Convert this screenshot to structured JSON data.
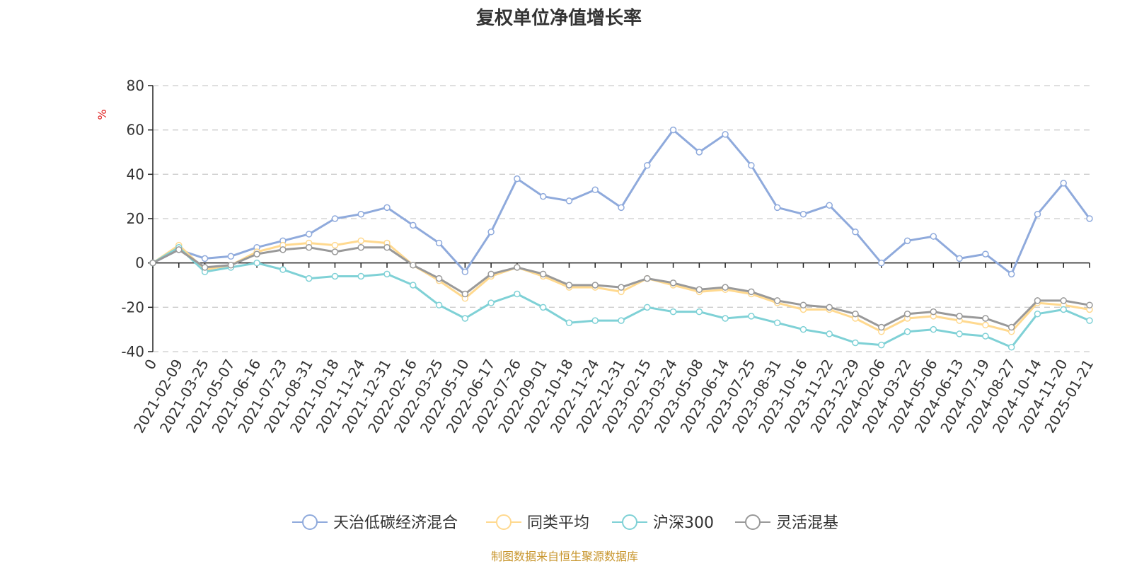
{
  "chart_data": {
    "type": "line",
    "title": "复权单位净值增长率",
    "ylabel": "%",
    "xlabel": "",
    "ylim": [
      -40,
      80
    ],
    "yticks": [
      80,
      60,
      40,
      20,
      0,
      -20,
      -40
    ],
    "grid": true,
    "legend_position": "bottom",
    "categories": [
      "0",
      "2021-02-09",
      "2021-03-25",
      "2021-05-07",
      "2021-06-16",
      "2021-07-23",
      "2021-08-31",
      "2021-10-18",
      "2021-11-24",
      "2021-12-31",
      "2022-02-16",
      "2022-03-25",
      "2022-05-10",
      "2022-06-17",
      "2022-07-26",
      "2022-09-01",
      "2022-10-18",
      "2022-11-24",
      "2022-12-31",
      "2023-02-15",
      "2023-03-24",
      "2023-05-08",
      "2023-06-14",
      "2023-07-25",
      "2023-08-31",
      "2023-10-16",
      "2023-11-22",
      "2023-12-29",
      "2024-02-06",
      "2024-03-22",
      "2024-05-06",
      "2024-06-13",
      "2024-07-19",
      "2024-08-27",
      "2024-10-14",
      "2024-11-20",
      "2025-01-21"
    ],
    "series": [
      {
        "name": "天治低碳经济混合",
        "color": "#8faadc",
        "values": [
          0,
          6,
          2,
          3,
          7,
          10,
          13,
          20,
          22,
          25,
          17,
          9,
          -4,
          14,
          38,
          30,
          28,
          33,
          25,
          44,
          60,
          50,
          58,
          44,
          25,
          22,
          26,
          14,
          0,
          10,
          12,
          2,
          4,
          -5,
          22,
          36,
          20
        ]
      },
      {
        "name": "同类平均",
        "color": "#ffd98f",
        "values": [
          0,
          8,
          -3,
          -1,
          5,
          8,
          9,
          8,
          10,
          9,
          -1,
          -8,
          -16,
          -6,
          -2,
          -6,
          -11,
          -11,
          -13,
          -7,
          -10,
          -13,
          -12,
          -14,
          -18,
          -21,
          -21,
          -25,
          -31,
          -25,
          -24,
          -26,
          -28,
          -31,
          -18,
          -19,
          -21
        ]
      },
      {
        "name": "沪深300",
        "color": "#7fd1d6",
        "values": [
          0,
          7,
          -4,
          -2,
          0,
          -3,
          -7,
          -6,
          -6,
          -5,
          -10,
          -19,
          -25,
          -18,
          -14,
          -20,
          -27,
          -26,
          -26,
          -20,
          -22,
          -22,
          -25,
          -24,
          -27,
          -30,
          -32,
          -36,
          -37,
          -31,
          -30,
          -32,
          -33,
          -38,
          -23,
          -21,
          -26
        ]
      },
      {
        "name": "灵活混基",
        "color": "#999999",
        "values": [
          0,
          6,
          -2,
          -1,
          4,
          6,
          7,
          5,
          7,
          7,
          -1,
          -7,
          -14,
          -5,
          -2,
          -5,
          -10,
          -10,
          -11,
          -7,
          -9,
          -12,
          -11,
          -13,
          -17,
          -19,
          -20,
          -23,
          -29,
          -23,
          -22,
          -24,
          -25,
          -29,
          -17,
          -17,
          -19
        ]
      }
    ]
  },
  "source": "制图数据来自恒生聚源数据库"
}
